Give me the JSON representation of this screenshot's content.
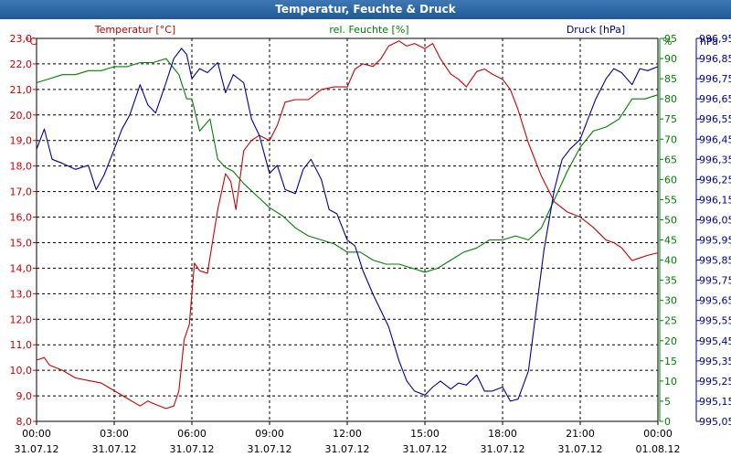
{
  "window": {
    "title": "Temperatur, Feuchte & Druck"
  },
  "chart_data": {
    "type": "line",
    "title": "Temperatur, Feuchte & Druck",
    "grid": true,
    "x_ticks": [
      {
        "h": 0,
        "time": "00:00",
        "date": "31.07.12"
      },
      {
        "h": 3,
        "time": "03:00",
        "date": "31.07.12"
      },
      {
        "h": 6,
        "time": "06:00",
        "date": "31.07.12"
      },
      {
        "h": 9,
        "time": "09:00",
        "date": "31.07.12"
      },
      {
        "h": 12,
        "time": "12:00",
        "date": "31.07.12"
      },
      {
        "h": 15,
        "time": "15:00",
        "date": "31.07.12"
      },
      {
        "h": 18,
        "time": "18:00",
        "date": "31.07.12"
      },
      {
        "h": 21,
        "time": "21:00",
        "date": "31.07.12"
      },
      {
        "h": 24,
        "time": "00:00",
        "date": "01.08.12"
      }
    ],
    "axes": {
      "temperature": {
        "label": "Temperatur [°C]",
        "unit": "°C",
        "range": [
          8.0,
          23.0
        ],
        "step": 1.0,
        "decimals": 1,
        "color": "#cc0000"
      },
      "humidity": {
        "label": "rel. Feuchte [%]",
        "unit": "%",
        "range": [
          0,
          95
        ],
        "step": 5,
        "decimals": 0,
        "color": "#008000"
      },
      "pressure": {
        "label": "Druck [hPa]",
        "unit": "hPa",
        "range": [
          995.05,
          996.95
        ],
        "step": 0.1,
        "decimals": 2,
        "color": "#000099"
      }
    },
    "series": [
      {
        "name": "Temperatur [°C]",
        "axis": "temperature",
        "color": "#cc0000",
        "x": [
          0,
          0.3,
          0.5,
          1,
          1.5,
          2,
          2.5,
          3,
          3.5,
          4,
          4.3,
          4.5,
          5,
          5.3,
          5.5,
          5.7,
          5.9,
          6.1,
          6.3,
          6.6,
          7,
          7.3,
          7.5,
          7.7,
          8,
          8.3,
          8.6,
          9,
          9.3,
          9.6,
          10,
          10.5,
          11,
          11.5,
          12,
          12.3,
          12.6,
          13,
          13.3,
          13.6,
          14,
          14.3,
          14.6,
          15,
          15.3,
          15.6,
          16,
          16.3,
          16.6,
          17,
          17.3,
          17.6,
          18,
          18.3,
          18.6,
          19,
          19.5,
          20,
          20.5,
          21,
          21.5,
          22,
          22.3,
          22.6,
          23,
          23.3,
          23.6,
          24
        ],
        "y": [
          10.4,
          10.5,
          10.2,
          10.0,
          9.7,
          9.6,
          9.5,
          9.2,
          8.9,
          8.6,
          8.8,
          8.7,
          8.5,
          8.6,
          9.2,
          11.2,
          11.8,
          14.2,
          13.9,
          13.8,
          16.3,
          17.7,
          17.4,
          16.3,
          18.6,
          19.0,
          19.2,
          19.0,
          19.6,
          20.5,
          20.6,
          20.6,
          21.0,
          21.1,
          21.1,
          21.8,
          22.0,
          21.9,
          22.2,
          22.7,
          22.9,
          22.7,
          22.8,
          22.6,
          22.8,
          22.2,
          21.6,
          21.4,
          21.1,
          21.7,
          21.8,
          21.6,
          21.4,
          21.0,
          20.2,
          18.9,
          17.6,
          16.6,
          16.2,
          16.0,
          15.6,
          15.1,
          15.0,
          14.8,
          14.3,
          14.4,
          14.5,
          14.6
        ]
      },
      {
        "name": "rel. Feuchte [%]",
        "axis": "humidity",
        "color": "#008000",
        "x": [
          0,
          0.5,
          1,
          1.5,
          2,
          2.5,
          3,
          3.5,
          4,
          4.5,
          5,
          5.5,
          5.8,
          6,
          6.3,
          6.7,
          7,
          7.3,
          7.6,
          8,
          8.5,
          9,
          9.5,
          10,
          10.5,
          11,
          11.5,
          12,
          12.5,
          13,
          13.5,
          14,
          14.5,
          15,
          15.5,
          16,
          16.5,
          17,
          17.5,
          18,
          18.5,
          19,
          19.5,
          20,
          20.5,
          21,
          21.5,
          22,
          22.5,
          23,
          23.5,
          24
        ],
        "y": [
          84,
          85,
          86,
          86,
          87,
          87,
          88,
          88,
          89,
          89,
          90,
          86,
          80,
          80,
          72,
          75,
          65,
          63,
          62,
          59,
          56,
          53,
          51,
          48,
          46,
          45,
          44,
          42,
          42,
          40,
          39,
          39,
          38,
          37,
          38,
          40,
          42,
          43,
          45,
          45,
          46,
          45,
          48,
          55,
          62,
          68,
          72,
          73,
          75,
          80,
          80,
          81
        ]
      },
      {
        "name": "Druck [hPa]",
        "axis": "pressure",
        "color": "#000099",
        "x": [
          0,
          0.3,
          0.6,
          1,
          1.5,
          2,
          2.3,
          2.6,
          3,
          3.3,
          3.6,
          4,
          4.3,
          4.6,
          5,
          5.3,
          5.6,
          5.8,
          6,
          6.3,
          6.6,
          7,
          7.3,
          7.6,
          8,
          8.3,
          8.6,
          9,
          9.3,
          9.6,
          10,
          10.3,
          10.6,
          11,
          11.3,
          11.6,
          12,
          12.3,
          12.6,
          13,
          13.3,
          13.6,
          14,
          14.3,
          14.6,
          15,
          15.3,
          15.6,
          16,
          16.3,
          16.6,
          17,
          17.3,
          17.6,
          18,
          18.3,
          18.6,
          19,
          19.3,
          19.6,
          20,
          20.3,
          20.6,
          21,
          21.3,
          21.6,
          22,
          22.3,
          22.6,
          23,
          23.3,
          23.6,
          24
        ],
        "y": [
          996.4,
          996.5,
          996.35,
          996.33,
          996.3,
          996.32,
          996.2,
          996.27,
          996.4,
          996.5,
          996.57,
          996.72,
          996.62,
          996.58,
          996.73,
          996.85,
          996.9,
          996.87,
          996.75,
          996.8,
          996.78,
          996.83,
          996.68,
          996.77,
          996.73,
          996.55,
          996.47,
          996.28,
          996.32,
          996.2,
          996.18,
          996.3,
          996.35,
          996.25,
          996.1,
          996.08,
          995.95,
          995.92,
          995.8,
          995.68,
          995.6,
          995.52,
          995.35,
          995.25,
          995.2,
          995.18,
          995.22,
          995.25,
          995.21,
          995.24,
          995.23,
          995.28,
          995.2,
          995.2,
          995.22,
          995.15,
          995.16,
          995.3,
          995.6,
          995.9,
          996.2,
          996.35,
          996.4,
          996.45,
          996.55,
          996.65,
          996.75,
          996.8,
          996.78,
          996.72,
          996.8,
          996.79,
          996.81
        ]
      }
    ]
  }
}
